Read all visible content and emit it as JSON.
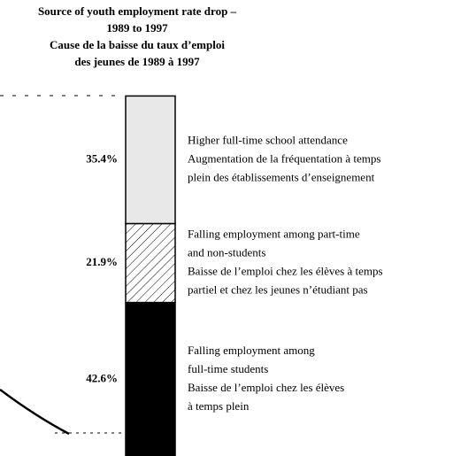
{
  "chart_data": {
    "type": "stacked-bar",
    "title": [
      "Source of youth employment rate drop –",
      "1989 to 1997",
      "Cause de la baisse du taux d’emploi",
      "des jeunes de 1989 à 1997"
    ],
    "ylim": [
      0,
      100
    ],
    "series": [
      {
        "name": [
          "Higher full-time school attendance",
          "Augmentation de la fréquentation à temps",
          "plein des établissements d’enseignement"
        ],
        "color": "#e8e8e8",
        "pattern": "solid",
        "values": [
          35.4
        ],
        "value_labels": [
          "35.4%"
        ]
      },
      {
        "name": [
          "Falling employment among part-time",
          "and non-students",
          "Baisse de l’emploi chez les élèves à temps",
          "partiel et chez les jeunes n’étudiant pas"
        ],
        "color": "#ffffff",
        "pattern": "hatch",
        "values": [
          21.9
        ],
        "value_labels": [
          "21.9%"
        ]
      },
      {
        "name": [
          "Falling employment among",
          "full-time students",
          "Baisse de l’emploi chez les élèves",
          "à temps plein"
        ],
        "color": "#000000",
        "pattern": "solid",
        "values": [
          42.6
        ],
        "value_labels": [
          "42.6%"
        ]
      }
    ]
  }
}
